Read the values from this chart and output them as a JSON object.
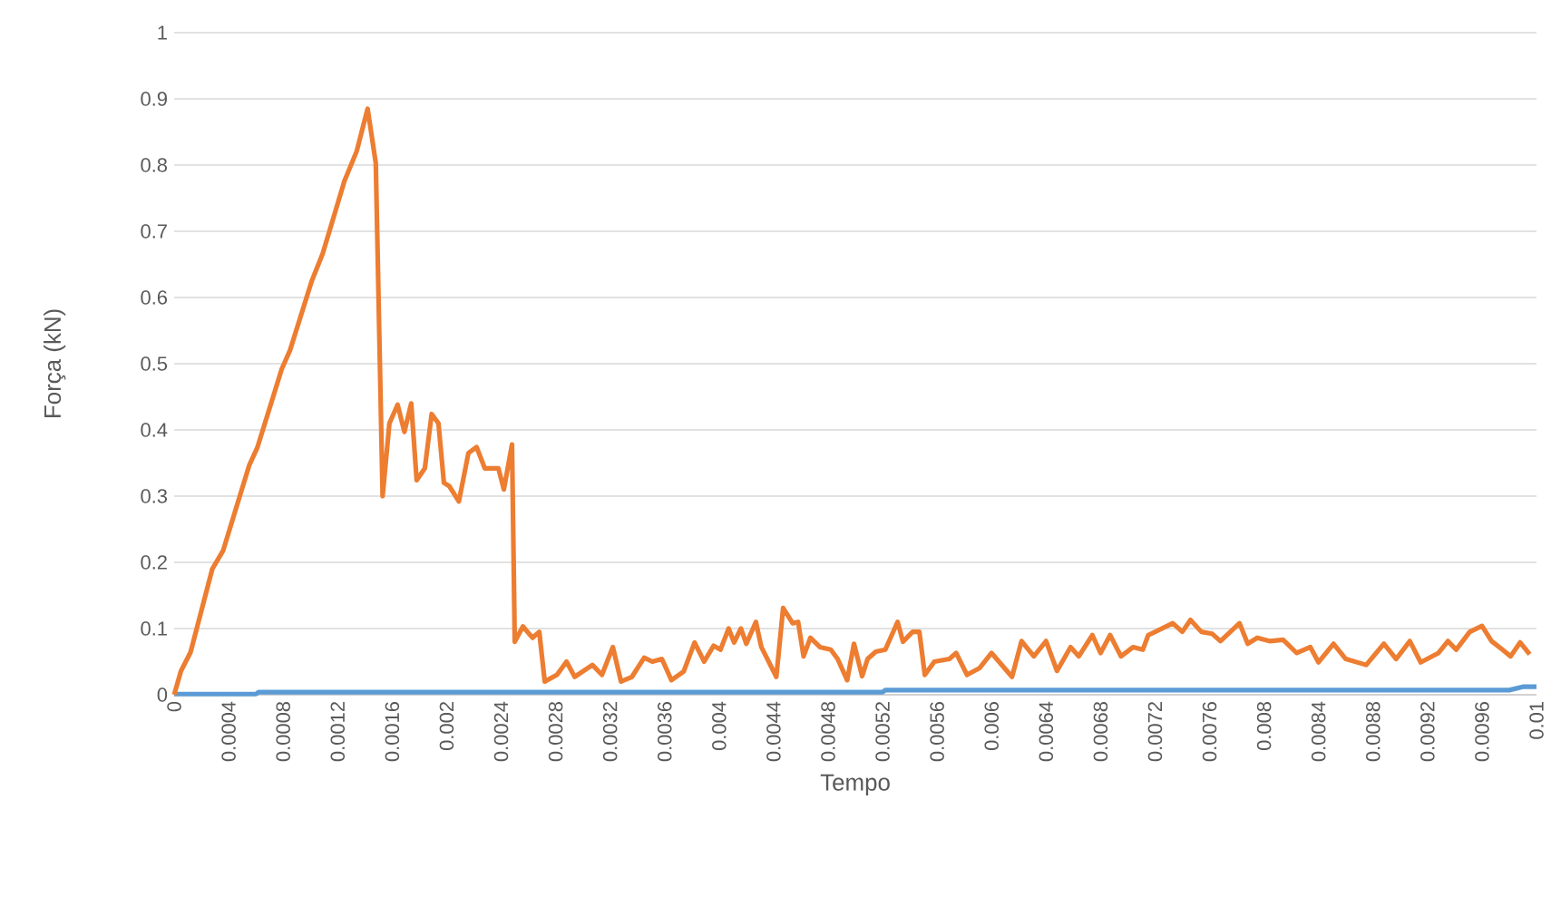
{
  "chart_data": {
    "type": "line",
    "xlabel": "Tempo",
    "ylabel": "Força (kN)",
    "xlim": [
      0,
      0.01
    ],
    "ylim": [
      0,
      1
    ],
    "xticks": [
      0,
      0.0004,
      0.0008,
      0.0012,
      0.0016,
      0.002,
      0.0024,
      0.0028,
      0.0032,
      0.0036,
      0.004,
      0.0044,
      0.0048,
      0.0052,
      0.0056,
      0.006,
      0.0064,
      0.0068,
      0.0072,
      0.0076,
      0.008,
      0.0084,
      0.0088,
      0.0092,
      0.0096,
      0.01
    ],
    "yticks": [
      0,
      0.1,
      0.2,
      0.3,
      0.4,
      0.5,
      0.6,
      0.7,
      0.8,
      0.9,
      1
    ],
    "grid": "y",
    "marker": "none",
    "line_style": "solid",
    "series": [
      {
        "color": "#5b9bd5",
        "x": [
          0,
          0.0006,
          0.00062,
          0.0052,
          0.00522,
          0.0098,
          0.0099,
          0.01
        ],
        "values": [
          0.001,
          0.001,
          0.004,
          0.004,
          0.007,
          0.007,
          0.012,
          0.012
        ]
      },
      {
        "color": "#ed7d31",
        "x": [
          0,
          5e-05,
          0.00012,
          0.00028,
          0.00036,
          0.00055,
          0.00061,
          0.00079,
          0.00085,
          0.00101,
          0.00109,
          0.00125,
          0.00134,
          0.00142,
          0.00148,
          0.00153,
          0.00158,
          0.00164,
          0.00169,
          0.00174,
          0.00178,
          0.00184,
          0.00189,
          0.00194,
          0.00198,
          0.00202,
          0.00209,
          0.00216,
          0.00222,
          0.00228,
          0.00238,
          0.00242,
          0.00248,
          0.0025,
          0.00256,
          0.00263,
          0.00268,
          0.00272,
          0.00281,
          0.00288,
          0.00294,
          0.00307,
          0.00314,
          0.00322,
          0.00328,
          0.00336,
          0.00345,
          0.00351,
          0.00358,
          0.00365,
          0.00374,
          0.00382,
          0.00389,
          0.00396,
          0.00401,
          0.00407,
          0.00411,
          0.00416,
          0.0042,
          0.00427,
          0.00431,
          0.00442,
          0.00447,
          0.00454,
          0.00458,
          0.00462,
          0.00467,
          0.00474,
          0.00482,
          0.00487,
          0.00494,
          0.00499,
          0.00505,
          0.00509,
          0.00515,
          0.00522,
          0.00531,
          0.00535,
          0.00542,
          0.00547,
          0.00551,
          0.00558,
          0.00569,
          0.00574,
          0.00582,
          0.00591,
          0.006,
          0.00615,
          0.00622,
          0.00631,
          0.0064,
          0.00648,
          0.00658,
          0.00664,
          0.00674,
          0.0068,
          0.00687,
          0.00695,
          0.00704,
          0.00711,
          0.00715,
          0.00724,
          0.00733,
          0.0074,
          0.00746,
          0.00754,
          0.00762,
          0.00768,
          0.00782,
          0.00788,
          0.00795,
          0.00804,
          0.00814,
          0.00824,
          0.00834,
          0.0084,
          0.00851,
          0.0086,
          0.00875,
          0.00888,
          0.00897,
          0.00907,
          0.00915,
          0.00928,
          0.00935,
          0.00941,
          0.00951,
          0.0096,
          0.00967,
          0.00975,
          0.00981,
          0.00988,
          0.00995
        ],
        "values": [
          0,
          0.036,
          0.064,
          0.19,
          0.218,
          0.346,
          0.373,
          0.492,
          0.52,
          0.625,
          0.666,
          0.776,
          0.821,
          0.885,
          0.803,
          0.3,
          0.41,
          0.438,
          0.397,
          0.44,
          0.324,
          0.342,
          0.424,
          0.41,
          0.32,
          0.315,
          0.292,
          0.365,
          0.374,
          0.342,
          0.342,
          0.31,
          0.378,
          0.08,
          0.103,
          0.086,
          0.095,
          0.02,
          0.03,
          0.05,
          0.027,
          0.045,
          0.03,
          0.072,
          0.02,
          0.027,
          0.056,
          0.05,
          0.054,
          0.022,
          0.035,
          0.079,
          0.05,
          0.074,
          0.068,
          0.1,
          0.079,
          0.1,
          0.077,
          0.11,
          0.072,
          0.027,
          0.131,
          0.108,
          0.11,
          0.058,
          0.086,
          0.072,
          0.068,
          0.054,
          0.022,
          0.077,
          0.028,
          0.054,
          0.065,
          0.068,
          0.11,
          0.08,
          0.095,
          0.095,
          0.03,
          0.05,
          0.054,
          0.063,
          0.03,
          0.04,
          0.063,
          0.027,
          0.081,
          0.058,
          0.081,
          0.036,
          0.072,
          0.058,
          0.09,
          0.063,
          0.09,
          0.058,
          0.072,
          0.068,
          0.09,
          0.099,
          0.108,
          0.095,
          0.113,
          0.095,
          0.092,
          0.081,
          0.108,
          0.077,
          0.086,
          0.081,
          0.083,
          0.063,
          0.072,
          0.049,
          0.077,
          0.054,
          0.045,
          0.077,
          0.054,
          0.081,
          0.049,
          0.063,
          0.081,
          0.068,
          0.095,
          0.104,
          0.081,
          0.068,
          0.058,
          0.079,
          0.061
        ]
      }
    ]
  }
}
